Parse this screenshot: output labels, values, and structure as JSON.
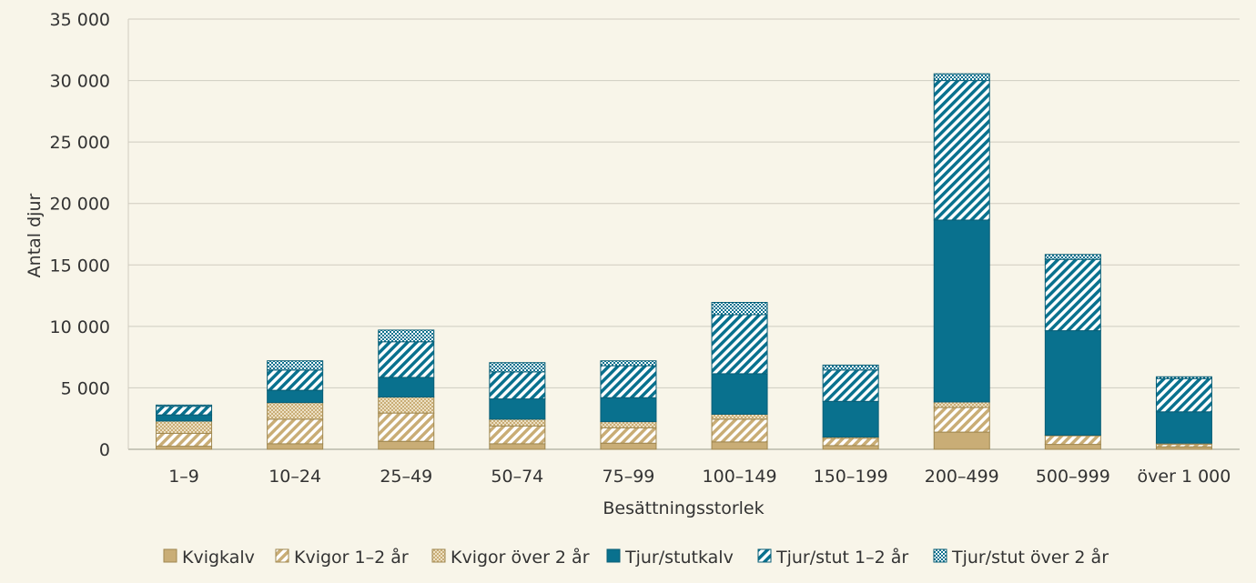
{
  "chart_data": {
    "type": "bar",
    "stacked": true,
    "title": "",
    "xlabel": "Besättningsstorlek",
    "ylabel": "Antal djur",
    "ylim": [
      0,
      35000
    ],
    "yticks": [
      0,
      5000,
      10000,
      15000,
      20000,
      25000,
      30000,
      35000
    ],
    "ytick_labels": [
      "0",
      "5 000",
      "10 000",
      "15 000",
      "20 000",
      "25 000",
      "30 000",
      "35 000"
    ],
    "grid": "horizontal",
    "legend_position": "bottom",
    "categories": [
      "1–9",
      "10–24",
      "25–49",
      "50–74",
      "75–99",
      "100–149",
      "150–199",
      "200–499",
      "500–999",
      "över 1 000"
    ],
    "series": [
      {
        "name": "Kvigkalv",
        "color": "#c9ad76",
        "pattern": "solid",
        "values": [
          250,
          450,
          650,
          450,
          500,
          600,
          300,
          1400,
          400,
          200
        ]
      },
      {
        "name": "Kvigor 1–2 år",
        "color": "#c9ad76",
        "pattern": "diagonal-stripes",
        "values": [
          1050,
          2000,
          2300,
          1450,
          1250,
          1850,
          600,
          2000,
          700,
          200
        ]
      },
      {
        "name": "Kvigor över 2 år",
        "color": "#c9ad76",
        "pattern": "dots",
        "values": [
          1000,
          1350,
          1300,
          550,
          500,
          400,
          100,
          450,
          50,
          100
        ]
      },
      {
        "name": "Tjur/stutkalv",
        "color": "#09718e",
        "pattern": "solid",
        "values": [
          500,
          1000,
          1600,
          1650,
          1950,
          3300,
          2900,
          14800,
          8500,
          2550
        ]
      },
      {
        "name": "Tjur/stut 1–2 år",
        "color": "#09718e",
        "pattern": "diagonal-stripes",
        "values": [
          700,
          1650,
          2900,
          2200,
          2600,
          4800,
          2550,
          11350,
          5800,
          2700
        ]
      },
      {
        "name": "Tjur/stut över 2 år",
        "color": "#09718e",
        "pattern": "crosshatch",
        "values": [
          100,
          750,
          950,
          750,
          400,
          1000,
          400,
          550,
          400,
          150
        ]
      }
    ]
  }
}
